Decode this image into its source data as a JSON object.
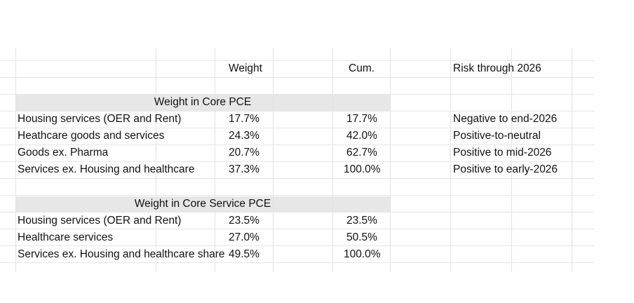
{
  "header": {
    "weight": "Weight",
    "cum": "Cum.",
    "risk": "Risk through 2026"
  },
  "section_core": {
    "title": "Weight in Core PCE",
    "rows": [
      {
        "label": "Housing services (OER and Rent)",
        "weight": "17.7%",
        "cum": "17.7%",
        "risk": "Negative to end-2026"
      },
      {
        "label": "Heathcare goods and services",
        "weight": "24.3%",
        "cum": "42.0%",
        "risk": "Positive-to-neutral"
      },
      {
        "label": "Goods ex. Pharma",
        "weight": "20.7%",
        "cum": "62.7%",
        "risk": "Positive to mid-2026"
      },
      {
        "label": "Services ex. Housing and healthcare",
        "weight": "37.3%",
        "cum": "100.0%",
        "risk": "Positive to early-2026"
      }
    ]
  },
  "section_service": {
    "title": "Weight in Core Service PCE",
    "rows": [
      {
        "label": "Housing services (OER and Rent)",
        "weight": "23.5%",
        "cum": "23.5%"
      },
      {
        "label": "Healthcare services",
        "weight": "27.0%",
        "cum": "50.5%"
      },
      {
        "label": "Services ex. Housing and healthcare share",
        "weight": "49.5%",
        "cum": "100.0%"
      }
    ]
  }
}
